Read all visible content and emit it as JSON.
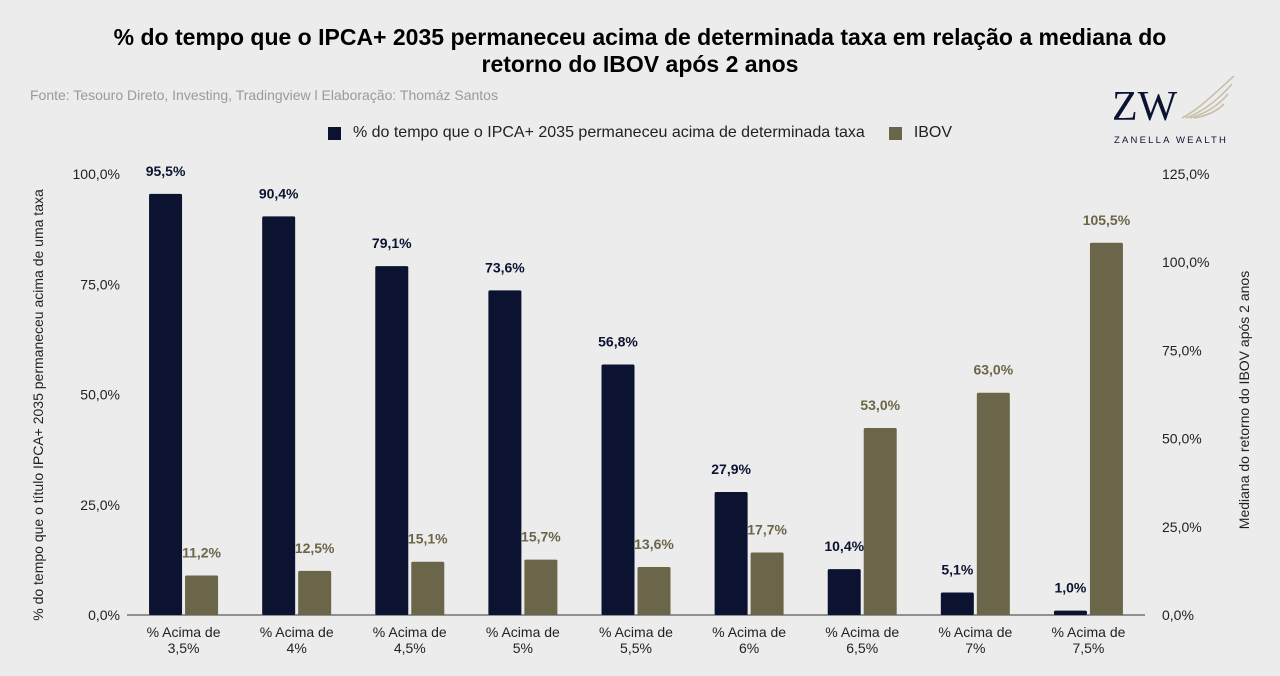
{
  "header": {
    "title_line1": "% do tempo que o IPCA+ 2035 permaneceu acima de determinada taxa em relação a mediana do",
    "title_line2": "retorno do IBOV após 2 anos",
    "source": "Fonte: Tesouro Direto, Investing, Tradingview l Elaboração: Thomáz Santos"
  },
  "logo": {
    "monogram": "ZW",
    "text": "ZANELLA WEALTH",
    "color": "#c9bfa6"
  },
  "colors": {
    "series1": "#0b1330",
    "series2": "#6b664a",
    "label1": "#0b1330",
    "label2": "#6b664a"
  },
  "chart_data": {
    "type": "bar",
    "categories": [
      [
        "% Acima de",
        "3,5%"
      ],
      [
        "% Acima de",
        "4%"
      ],
      [
        "% Acima de",
        "4,5%"
      ],
      [
        "% Acima de",
        "5%"
      ],
      [
        "% Acima de",
        "5,5%"
      ],
      [
        "% Acima de",
        "6%"
      ],
      [
        "% Acima de",
        "6,5%"
      ],
      [
        "% Acima de",
        "7%"
      ],
      [
        "% Acima de",
        "7,5%"
      ]
    ],
    "series": [
      {
        "name": "% do tempo que o IPCA+ 2035 permaneceu acima de determinada taxa",
        "axis": "left",
        "values": [
          95.5,
          90.4,
          79.1,
          73.6,
          56.8,
          27.9,
          10.4,
          5.1,
          1.0
        ],
        "labels": [
          "95,5%",
          "90,4%",
          "79,1%",
          "73,6%",
          "56,8%",
          "27,9%",
          "10,4%",
          "5,1%",
          "1,0%"
        ]
      },
      {
        "name": "IBOV",
        "axis": "right",
        "values": [
          11.2,
          12.5,
          15.1,
          15.7,
          13.6,
          17.7,
          53.0,
          63.0,
          105.5
        ],
        "labels": [
          "11,2%",
          "12,5%",
          "15,1%",
          "15,7%",
          "13,6%",
          "17,7%",
          "53,0%",
          "63,0%",
          "105,5%"
        ]
      }
    ],
    "ylabel": "% do tempo que o título IPCA+ 2035 permaneceu acima de uma taxa",
    "y2label": "Mediana do retorno do IBOV após 2 anos",
    "ylim": [
      0,
      100
    ],
    "y2lim": [
      0,
      125
    ],
    "yticks": [
      0,
      25,
      50,
      75,
      100
    ],
    "yticks_labels": [
      "0,0%",
      "25,0%",
      "50,0%",
      "75,0%",
      "100,0%"
    ],
    "y2ticks": [
      0,
      25,
      50,
      75,
      100,
      125
    ],
    "y2ticks_labels": [
      "0,0%",
      "25,0%",
      "50,0%",
      "75,0%",
      "100,0%",
      "125,0%"
    ],
    "grid": false,
    "legend": "top"
  }
}
